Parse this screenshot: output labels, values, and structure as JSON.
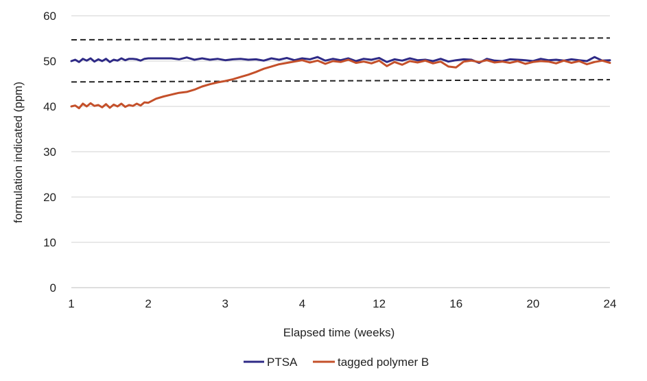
{
  "chart_data": {
    "type": "line",
    "title": "",
    "xlabel": "Elapsed time (weeks)",
    "ylabel": "formulation indicated (ppm)",
    "ylim": [
      0,
      60
    ],
    "yticks": [
      0,
      10,
      20,
      30,
      40,
      50,
      60
    ],
    "xticks": [
      "1",
      "2",
      "3",
      "4",
      "12",
      "16",
      "20",
      "24"
    ],
    "xlim": [
      0,
      7
    ],
    "grid": "horizontal",
    "legend_position": "bottom",
    "series": [
      {
        "name": "PTSA",
        "color": "#2e2a86",
        "x": [
          0,
          0.05,
          0.1,
          0.15,
          0.2,
          0.25,
          0.3,
          0.35,
          0.4,
          0.45,
          0.5,
          0.55,
          0.6,
          0.65,
          0.7,
          0.75,
          0.8,
          0.85,
          0.9,
          0.95,
          1.0,
          1.1,
          1.2,
          1.3,
          1.4,
          1.5,
          1.6,
          1.7,
          1.8,
          1.9,
          2.0,
          2.1,
          2.2,
          2.3,
          2.4,
          2.5,
          2.6,
          2.7,
          2.8,
          2.9,
          3.0,
          3.1,
          3.2,
          3.3,
          3.4,
          3.5,
          3.6,
          3.7,
          3.8,
          3.9,
          4.0,
          4.1,
          4.2,
          4.3,
          4.4,
          4.5,
          4.6,
          4.7,
          4.8,
          4.9,
          5.0,
          5.1,
          5.2,
          5.3,
          5.4,
          5.5,
          5.6,
          5.7,
          5.8,
          5.9,
          6.0,
          6.1,
          6.2,
          6.3,
          6.4,
          6.5,
          6.6,
          6.7,
          6.8,
          6.9,
          7.0
        ],
        "values": [
          50.0,
          50.3,
          49.8,
          50.5,
          50.1,
          50.6,
          49.9,
          50.4,
          50.0,
          50.5,
          49.8,
          50.3,
          50.1,
          50.6,
          50.2,
          50.5,
          50.5,
          50.4,
          50.1,
          50.5,
          50.6,
          50.6,
          50.6,
          50.6,
          50.4,
          50.8,
          50.3,
          50.6,
          50.3,
          50.5,
          50.2,
          50.4,
          50.5,
          50.3,
          50.4,
          50.1,
          50.6,
          50.3,
          50.7,
          50.2,
          50.6,
          50.4,
          50.9,
          50.1,
          50.5,
          50.2,
          50.6,
          50.0,
          50.5,
          50.3,
          50.7,
          49.8,
          50.4,
          50.1,
          50.6,
          50.2,
          50.3,
          50.0,
          50.5,
          49.9,
          50.2,
          50.4,
          50.3,
          49.6,
          50.5,
          50.1,
          50.0,
          50.4,
          50.3,
          50.2,
          50.0,
          50.5,
          50.2,
          50.3,
          50.1,
          50.4,
          50.2,
          50.0,
          50.9,
          50.1,
          50.2
        ]
      },
      {
        "name": "tagged polymer B",
        "color": "#c4502a",
        "x": [
          0,
          0.05,
          0.1,
          0.15,
          0.2,
          0.25,
          0.3,
          0.35,
          0.4,
          0.45,
          0.5,
          0.55,
          0.6,
          0.65,
          0.7,
          0.75,
          0.8,
          0.85,
          0.9,
          0.95,
          1.0,
          1.1,
          1.2,
          1.3,
          1.4,
          1.5,
          1.6,
          1.7,
          1.8,
          1.9,
          2.0,
          2.1,
          2.2,
          2.3,
          2.4,
          2.5,
          2.6,
          2.7,
          2.8,
          2.9,
          3.0,
          3.1,
          3.2,
          3.3,
          3.4,
          3.5,
          3.6,
          3.7,
          3.8,
          3.9,
          4.0,
          4.1,
          4.2,
          4.3,
          4.4,
          4.5,
          4.6,
          4.7,
          4.8,
          4.9,
          5.0,
          5.1,
          5.2,
          5.3,
          5.4,
          5.5,
          5.6,
          5.7,
          5.8,
          5.9,
          6.0,
          6.1,
          6.2,
          6.3,
          6.4,
          6.5,
          6.6,
          6.7,
          6.8,
          6.9,
          7.0
        ],
        "values": [
          40.0,
          40.2,
          39.6,
          40.6,
          40.0,
          40.7,
          40.1,
          40.3,
          39.8,
          40.5,
          39.7,
          40.4,
          40.0,
          40.6,
          39.9,
          40.3,
          40.1,
          40.6,
          40.2,
          40.9,
          40.8,
          41.7,
          42.2,
          42.6,
          43.0,
          43.2,
          43.7,
          44.4,
          44.9,
          45.3,
          45.6,
          46.0,
          46.5,
          47.0,
          47.6,
          48.3,
          48.8,
          49.3,
          49.6,
          49.9,
          50.2,
          49.7,
          50.1,
          49.4,
          50.0,
          49.8,
          50.3,
          49.6,
          49.9,
          49.5,
          50.1,
          48.9,
          49.8,
          49.2,
          50.0,
          49.7,
          50.1,
          49.5,
          49.9,
          48.8,
          48.6,
          49.9,
          50.1,
          49.8,
          50.2,
          49.7,
          49.9,
          49.6,
          50.0,
          49.4,
          49.8,
          50.0,
          49.9,
          49.5,
          50.1,
          49.6,
          50.0,
          49.3,
          49.8,
          50.1,
          49.6
        ]
      }
    ],
    "reference_lines": [
      {
        "style": "dashed",
        "color": "#222222",
        "x": [
          0,
          7
        ],
        "values": [
          54.7,
          55.1
        ]
      },
      {
        "style": "dashed",
        "color": "#222222",
        "x": [
          0,
          7
        ],
        "values": [
          45.4,
          45.9
        ]
      }
    ]
  }
}
